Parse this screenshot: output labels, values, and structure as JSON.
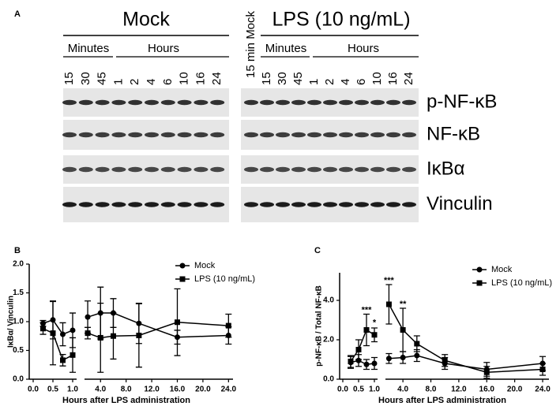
{
  "panel_a": {
    "label": "A",
    "groups": [
      {
        "title": "Mock",
        "minutes_label": "Minutes",
        "hours_label": "Hours",
        "lanes": [
          "15",
          "30",
          "45",
          "1",
          "2",
          "4",
          "6",
          "10",
          "16",
          "24"
        ]
      },
      {
        "title": "LPS (10 ng/mL)",
        "minutes_label": "Minutes",
        "hours_label": "Hours",
        "lanes": [
          "15",
          "30",
          "45",
          "1",
          "2",
          "4",
          "6",
          "10",
          "16",
          "24"
        ]
      }
    ],
    "control_lane": "15 min Mock",
    "proteins": [
      "p-NF-κB",
      "NF-κB",
      "IκBα",
      "Vinculin"
    ]
  },
  "chart_data": [
    {
      "type": "line",
      "panel_label": "B",
      "ylabel": "IκBα/ Vinculin",
      "xlabel": "Hours after LPS administration",
      "ylim": [
        0,
        2.0
      ],
      "yticks": [
        {
          "value": 0,
          "label": "0.0"
        },
        {
          "value": 0.5,
          "label": "0.5"
        },
        {
          "value": 1,
          "label": "1.0"
        },
        {
          "value": 1.5,
          "label": "1.5"
        },
        {
          "value": 2,
          "label": "2.0"
        }
      ],
      "x_segments": [
        {
          "xlim": [
            -0.1,
            1.1
          ],
          "xticks": [
            {
              "value": 0,
              "label": "0.0"
            },
            {
              "value": 0.5,
              "label": "0.5"
            },
            {
              "value": 1,
              "label": "1.0"
            }
          ]
        },
        {
          "xlim": [
            1.5,
            24.7
          ],
          "xticks": [
            {
              "value": 4,
              "label": "4.0"
            },
            {
              "value": 8,
              "label": "8.0"
            },
            {
              "value": 12,
              "label": "12.0"
            },
            {
              "value": 16,
              "label": "16.0"
            },
            {
              "value": 20,
              "label": "20.0"
            },
            {
              "value": 24,
              "label": "24.0"
            }
          ]
        }
      ],
      "x": [
        0.25,
        0.5,
        0.75,
        1,
        2,
        4,
        6,
        10,
        16,
        24
      ],
      "series": [
        {
          "name": "Mock",
          "marker": "circle",
          "color": "#000000",
          "values": [
            0.97,
            1.03,
            0.78,
            0.85,
            1.08,
            1.15,
            1.15,
            0.97,
            0.73,
            0.76
          ],
          "errors": [
            0.05,
            0.33,
            0.2,
            0.3,
            0.28,
            0.45,
            0.25,
            0.35,
            0.12,
            0.15
          ]
        },
        {
          "name": "LPS (10 ng/mL)",
          "marker": "square",
          "color": "#000000",
          "values": [
            0.88,
            0.8,
            0.33,
            0.42,
            0.8,
            0.72,
            0.75,
            0.76,
            0.99,
            0.93
          ],
          "errors": [
            0.1,
            0.55,
            0.1,
            0.3,
            0.1,
            0.6,
            0.4,
            0.55,
            0.58,
            0.2
          ]
        }
      ],
      "annotations": []
    },
    {
      "type": "line",
      "panel_label": "C",
      "ylabel": "p-NF-κB / Total NF-κB",
      "xlabel": "Hours after LPS administration",
      "ylim": [
        0,
        5.4
      ],
      "yticks": [
        {
          "value": 0,
          "label": "0.0"
        },
        {
          "value": 2,
          "label": "2.0"
        },
        {
          "value": 4,
          "label": "4.0"
        }
      ],
      "x_segments": [
        {
          "xlim": [
            -0.1,
            1.1
          ],
          "xticks": [
            {
              "value": 0,
              "label": "0.0"
            },
            {
              "value": 0.5,
              "label": "0.5"
            },
            {
              "value": 1,
              "label": "1.0"
            }
          ]
        },
        {
          "xlim": [
            1.5,
            24.9
          ],
          "xticks": [
            {
              "value": 4,
              "label": "4.0"
            },
            {
              "value": 8,
              "label": "8.0"
            },
            {
              "value": 12,
              "label": "12.0"
            },
            {
              "value": 16,
              "label": "16.0"
            },
            {
              "value": 20,
              "label": "20.0"
            },
            {
              "value": 24,
              "label": "24.0"
            }
          ]
        }
      ],
      "x": [
        0.25,
        0.5,
        0.75,
        1,
        2,
        4,
        6,
        10,
        16,
        24
      ],
      "series": [
        {
          "name": "Mock",
          "marker": "circle",
          "color": "#000000",
          "values": [
            0.85,
            0.95,
            0.75,
            0.8,
            1.05,
            1.1,
            1.2,
            0.8,
            0.5,
            0.8
          ],
          "errors": [
            0.3,
            0.3,
            0.25,
            0.3,
            0.25,
            0.3,
            0.3,
            0.3,
            0.35,
            0.35
          ]
        },
        {
          "name": "LPS (10 ng/mL)",
          "marker": "square",
          "color": "#000000",
          "values": [
            0.9,
            1.5,
            2.5,
            2.25,
            3.8,
            2.5,
            1.8,
            0.95,
            0.35,
            0.5
          ],
          "errors": [
            0.3,
            0.5,
            0.8,
            0.35,
            1.0,
            1.1,
            0.4,
            0.3,
            0.3,
            0.3
          ]
        }
      ],
      "annotations": [
        {
          "text": "***",
          "x": 0.75,
          "y": 3.5
        },
        {
          "text": "*",
          "x": 1,
          "y": 2.85
        },
        {
          "text": "***",
          "x": 2,
          "y": 5.0
        },
        {
          "text": "**",
          "x": 4,
          "y": 3.8
        }
      ]
    }
  ]
}
